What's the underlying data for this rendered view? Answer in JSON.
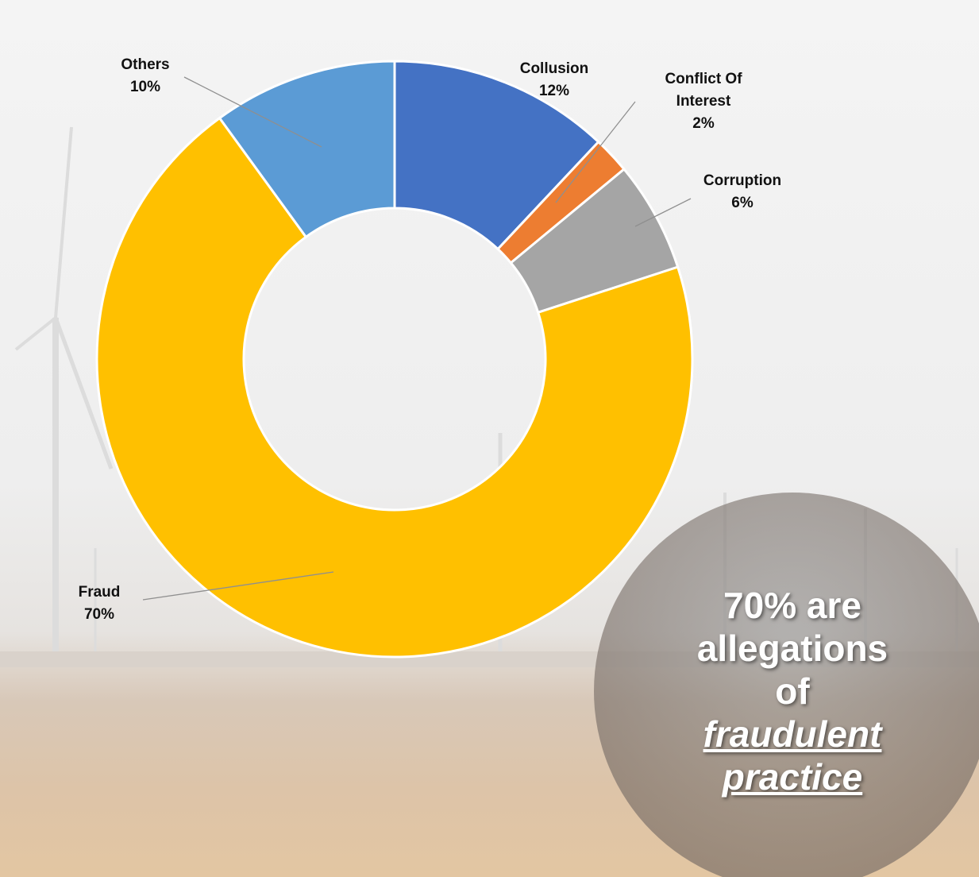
{
  "chart_data": {
    "type": "donut",
    "categories": [
      "Collusion",
      "Conflict Of Interest",
      "Corruption",
      "Fraud",
      "Others"
    ],
    "values": [
      12,
      2,
      6,
      70,
      10
    ],
    "value_labels": [
      "12%",
      "2%",
      "6%",
      "70%",
      "10%"
    ],
    "colors": [
      "#4472c4",
      "#ed7d31",
      "#a5a5a5",
      "#ffc000",
      "#5b9bd5"
    ],
    "annotation": {
      "text": "70% are allegations of",
      "emphasis": "fraudulent practice"
    }
  }
}
